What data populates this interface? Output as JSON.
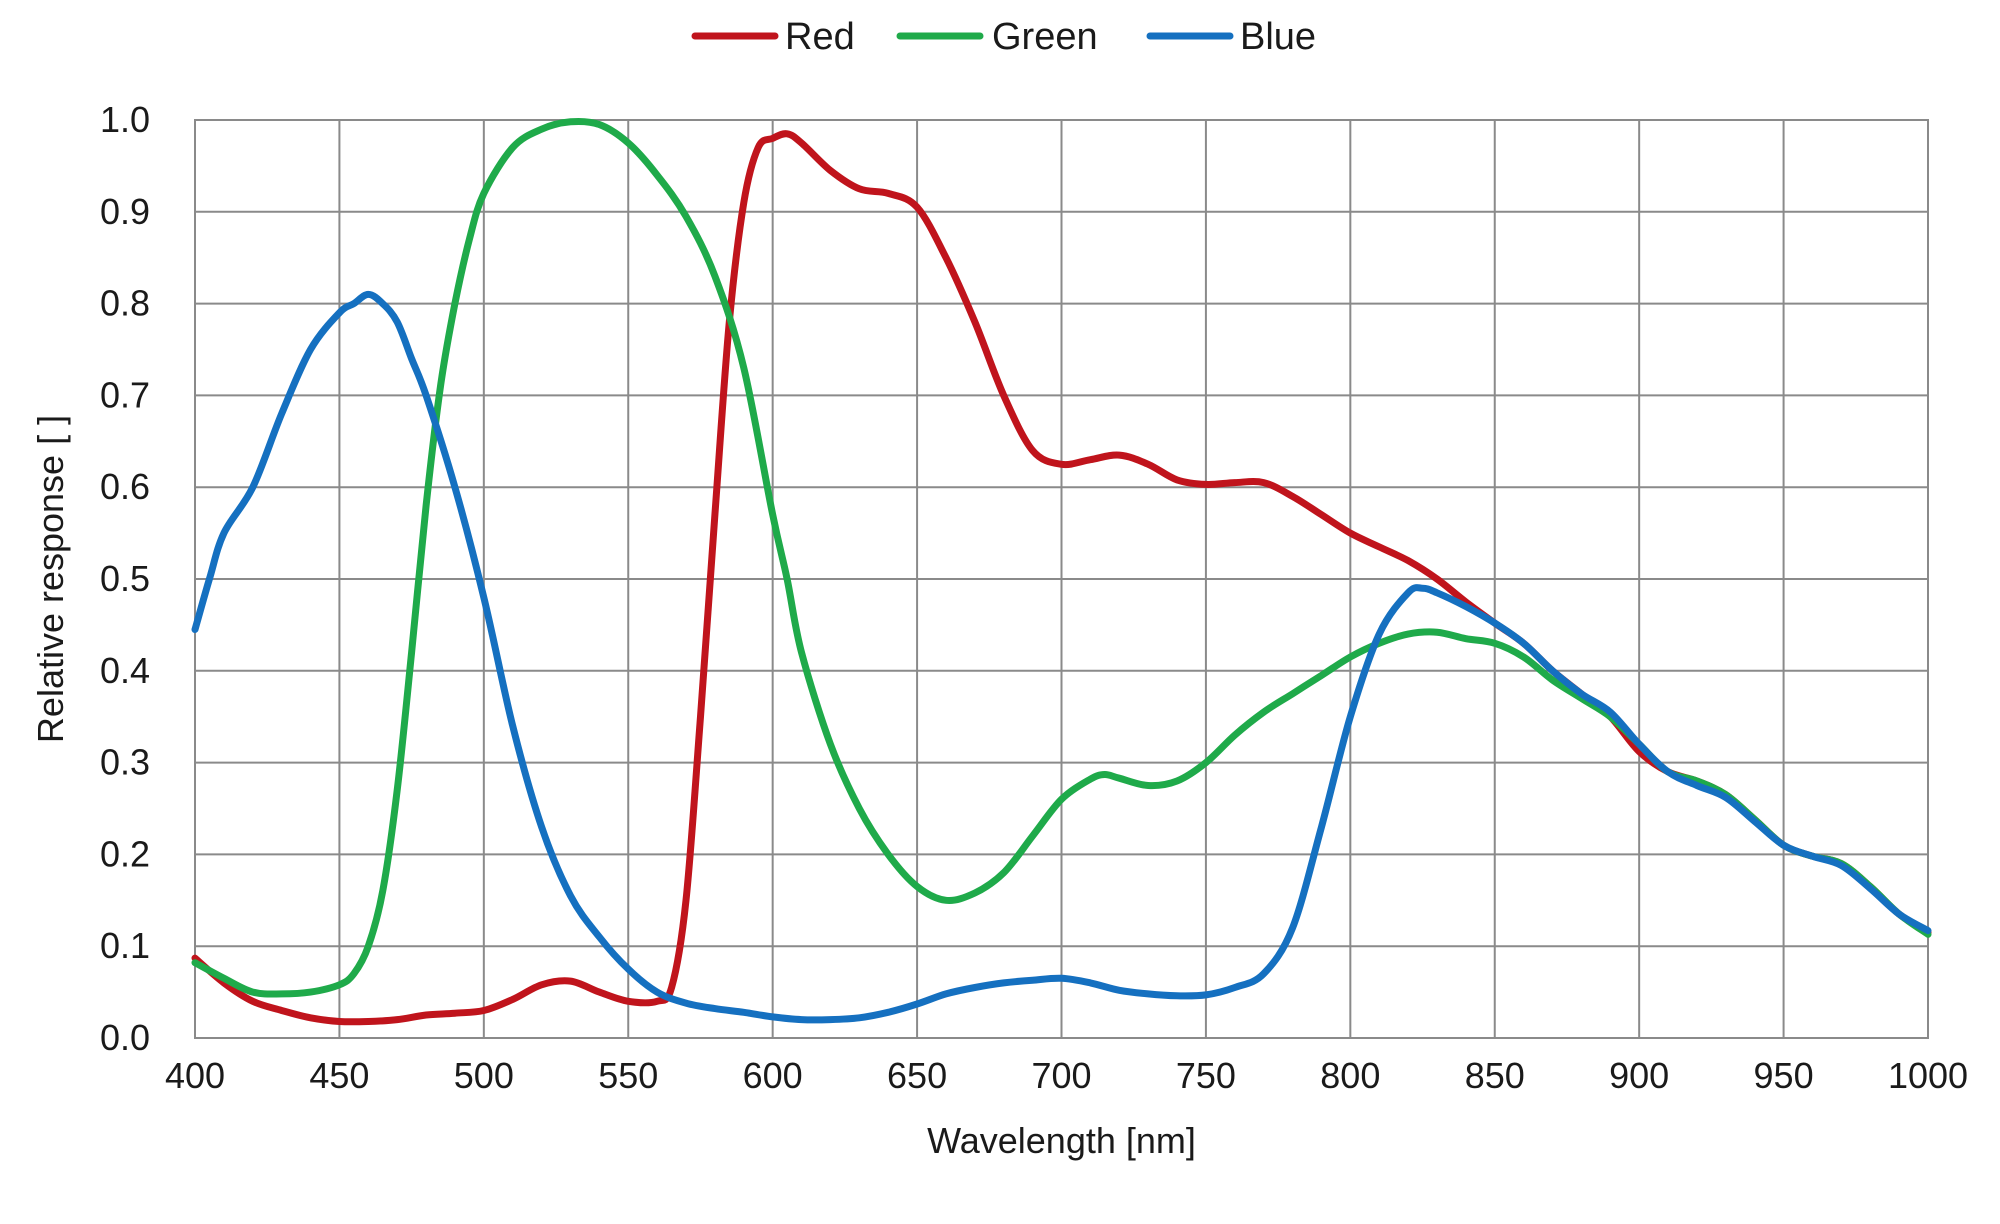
{
  "chart_data": {
    "type": "line",
    "title": "",
    "xlabel": "Wavelength [nm]",
    "ylabel": "Relative response [ ]",
    "xlim": [
      400,
      1000
    ],
    "ylim": [
      0.0,
      1.0
    ],
    "x_ticks": [
      "400",
      "450",
      "500",
      "550",
      "600",
      "650",
      "700",
      "750",
      "800",
      "850",
      "900",
      "950",
      "1000"
    ],
    "y_ticks": [
      "0.0",
      "0.1",
      "0.2",
      "0.3",
      "0.4",
      "0.5",
      "0.6",
      "0.7",
      "0.8",
      "0.9",
      "1.0"
    ],
    "grid": true,
    "legend_position": "top-center",
    "series": [
      {
        "name": "Red",
        "color": "#c0141c",
        "points": [
          [
            400,
            0.087
          ],
          [
            410,
            0.06
          ],
          [
            420,
            0.04
          ],
          [
            430,
            0.03
          ],
          [
            440,
            0.022
          ],
          [
            450,
            0.018
          ],
          [
            460,
            0.018
          ],
          [
            470,
            0.02
          ],
          [
            480,
            0.025
          ],
          [
            490,
            0.027
          ],
          [
            500,
            0.03
          ],
          [
            510,
            0.042
          ],
          [
            520,
            0.058
          ],
          [
            530,
            0.062
          ],
          [
            540,
            0.05
          ],
          [
            550,
            0.04
          ],
          [
            560,
            0.04
          ],
          [
            565,
            0.055
          ],
          [
            570,
            0.15
          ],
          [
            575,
            0.35
          ],
          [
            580,
            0.57
          ],
          [
            585,
            0.78
          ],
          [
            590,
            0.91
          ],
          [
            595,
            0.97
          ],
          [
            600,
            0.98
          ],
          [
            605,
            0.985
          ],
          [
            610,
            0.975
          ],
          [
            620,
            0.945
          ],
          [
            630,
            0.925
          ],
          [
            640,
            0.92
          ],
          [
            650,
            0.905
          ],
          [
            660,
            0.85
          ],
          [
            670,
            0.78
          ],
          [
            680,
            0.7
          ],
          [
            690,
            0.64
          ],
          [
            700,
            0.625
          ],
          [
            710,
            0.63
          ],
          [
            720,
            0.635
          ],
          [
            730,
            0.625
          ],
          [
            740,
            0.608
          ],
          [
            750,
            0.603
          ],
          [
            760,
            0.605
          ],
          [
            770,
            0.605
          ],
          [
            780,
            0.59
          ],
          [
            790,
            0.57
          ],
          [
            800,
            0.55
          ],
          [
            810,
            0.535
          ],
          [
            820,
            0.52
          ],
          [
            830,
            0.5
          ],
          [
            840,
            0.475
          ],
          [
            850,
            0.452
          ],
          [
            860,
            0.43
          ],
          [
            870,
            0.4
          ],
          [
            880,
            0.375
          ],
          [
            890,
            0.35
          ],
          [
            900,
            0.312
          ],
          [
            910,
            0.29
          ],
          [
            920,
            0.28
          ],
          [
            930,
            0.265
          ],
          [
            940,
            0.238
          ],
          [
            950,
            0.21
          ],
          [
            960,
            0.198
          ],
          [
            970,
            0.19
          ],
          [
            980,
            0.165
          ],
          [
            990,
            0.135
          ],
          [
            1000,
            0.115
          ]
        ]
      },
      {
        "name": "Green",
        "color": "#1faa4a",
        "points": [
          [
            400,
            0.082
          ],
          [
            410,
            0.065
          ],
          [
            420,
            0.05
          ],
          [
            430,
            0.048
          ],
          [
            440,
            0.05
          ],
          [
            450,
            0.058
          ],
          [
            455,
            0.07
          ],
          [
            460,
            0.1
          ],
          [
            465,
            0.16
          ],
          [
            470,
            0.27
          ],
          [
            475,
            0.42
          ],
          [
            480,
            0.58
          ],
          [
            485,
            0.71
          ],
          [
            490,
            0.8
          ],
          [
            495,
            0.87
          ],
          [
            500,
            0.92
          ],
          [
            510,
            0.97
          ],
          [
            520,
            0.99
          ],
          [
            530,
            0.998
          ],
          [
            540,
            0.995
          ],
          [
            550,
            0.975
          ],
          [
            560,
            0.94
          ],
          [
            570,
            0.895
          ],
          [
            580,
            0.83
          ],
          [
            590,
            0.73
          ],
          [
            600,
            0.57
          ],
          [
            605,
            0.5
          ],
          [
            610,
            0.42
          ],
          [
            620,
            0.32
          ],
          [
            630,
            0.25
          ],
          [
            640,
            0.2
          ],
          [
            650,
            0.165
          ],
          [
            660,
            0.15
          ],
          [
            670,
            0.158
          ],
          [
            680,
            0.18
          ],
          [
            690,
            0.22
          ],
          [
            700,
            0.26
          ],
          [
            710,
            0.282
          ],
          [
            715,
            0.287
          ],
          [
            720,
            0.283
          ],
          [
            730,
            0.275
          ],
          [
            740,
            0.28
          ],
          [
            750,
            0.3
          ],
          [
            760,
            0.33
          ],
          [
            770,
            0.355
          ],
          [
            780,
            0.375
          ],
          [
            790,
            0.395
          ],
          [
            800,
            0.415
          ],
          [
            810,
            0.43
          ],
          [
            820,
            0.44
          ],
          [
            830,
            0.442
          ],
          [
            840,
            0.435
          ],
          [
            850,
            0.43
          ],
          [
            860,
            0.415
          ],
          [
            870,
            0.39
          ],
          [
            880,
            0.37
          ],
          [
            890,
            0.35
          ],
          [
            900,
            0.32
          ],
          [
            910,
            0.29
          ],
          [
            920,
            0.28
          ],
          [
            930,
            0.265
          ],
          [
            940,
            0.238
          ],
          [
            950,
            0.21
          ],
          [
            960,
            0.198
          ],
          [
            970,
            0.19
          ],
          [
            980,
            0.165
          ],
          [
            990,
            0.135
          ],
          [
            1000,
            0.113
          ]
        ]
      },
      {
        "name": "Blue",
        "color": "#1570c0",
        "points": [
          [
            400,
            0.445
          ],
          [
            405,
            0.5
          ],
          [
            410,
            0.55
          ],
          [
            420,
            0.6
          ],
          [
            430,
            0.68
          ],
          [
            440,
            0.75
          ],
          [
            450,
            0.79
          ],
          [
            455,
            0.8
          ],
          [
            460,
            0.81
          ],
          [
            465,
            0.8
          ],
          [
            470,
            0.78
          ],
          [
            475,
            0.74
          ],
          [
            480,
            0.7
          ],
          [
            490,
            0.6
          ],
          [
            500,
            0.48
          ],
          [
            510,
            0.34
          ],
          [
            520,
            0.23
          ],
          [
            530,
            0.155
          ],
          [
            540,
            0.11
          ],
          [
            550,
            0.075
          ],
          [
            560,
            0.05
          ],
          [
            570,
            0.038
          ],
          [
            580,
            0.032
          ],
          [
            590,
            0.028
          ],
          [
            600,
            0.023
          ],
          [
            610,
            0.02
          ],
          [
            620,
            0.02
          ],
          [
            630,
            0.022
          ],
          [
            640,
            0.028
          ],
          [
            650,
            0.037
          ],
          [
            660,
            0.048
          ],
          [
            670,
            0.055
          ],
          [
            680,
            0.06
          ],
          [
            690,
            0.063
          ],
          [
            700,
            0.065
          ],
          [
            710,
            0.06
          ],
          [
            720,
            0.052
          ],
          [
            730,
            0.048
          ],
          [
            740,
            0.046
          ],
          [
            750,
            0.047
          ],
          [
            760,
            0.055
          ],
          [
            770,
            0.07
          ],
          [
            780,
            0.12
          ],
          [
            790,
            0.23
          ],
          [
            800,
            0.35
          ],
          [
            810,
            0.44
          ],
          [
            820,
            0.485
          ],
          [
            825,
            0.49
          ],
          [
            830,
            0.485
          ],
          [
            840,
            0.47
          ],
          [
            850,
            0.452
          ],
          [
            860,
            0.43
          ],
          [
            870,
            0.4
          ],
          [
            880,
            0.375
          ],
          [
            890,
            0.355
          ],
          [
            900,
            0.32
          ],
          [
            910,
            0.29
          ],
          [
            920,
            0.275
          ],
          [
            930,
            0.262
          ],
          [
            940,
            0.236
          ],
          [
            950,
            0.21
          ],
          [
            960,
            0.198
          ],
          [
            970,
            0.188
          ],
          [
            980,
            0.163
          ],
          [
            990,
            0.135
          ],
          [
            1000,
            0.117
          ]
        ]
      }
    ]
  }
}
